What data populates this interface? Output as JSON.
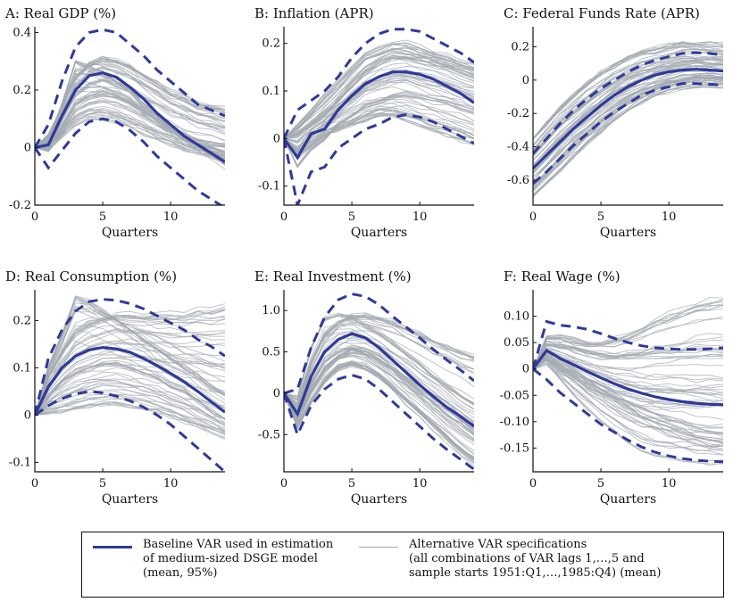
{
  "chart_data": [
    {
      "type": "line",
      "title": "A: Real GDP (%)",
      "xlabel": "Quarters",
      "xlim": [
        0,
        14
      ],
      "ylim": [
        -0.2,
        0.42
      ],
      "xticks": [
        0,
        5,
        10
      ],
      "yticks": [
        -0.2,
        0,
        0.2,
        0.4
      ],
      "yticklabels": [
        "-0.2",
        "0",
        "0.2",
        "0.4"
      ],
      "x": [
        0,
        1,
        2,
        3,
        4,
        5,
        6,
        7,
        8,
        9,
        10,
        11,
        12,
        13,
        14
      ],
      "series": [
        {
          "role": "mean",
          "values": [
            0,
            0.01,
            0.11,
            0.2,
            0.25,
            0.26,
            0.245,
            0.21,
            0.17,
            0.12,
            0.08,
            0.04,
            0.01,
            -0.02,
            -0.05
          ]
        },
        {
          "role": "upper",
          "values": [
            0,
            0.08,
            0.23,
            0.35,
            0.4,
            0.41,
            0.4,
            0.36,
            0.32,
            0.27,
            0.23,
            0.19,
            0.15,
            0.13,
            0.11
          ]
        },
        {
          "role": "lower",
          "values": [
            0,
            -0.07,
            -0.01,
            0.05,
            0.09,
            0.1,
            0.09,
            0.06,
            0.02,
            -0.03,
            -0.07,
            -0.11,
            -0.15,
            -0.18,
            -0.21
          ]
        },
        {
          "role": "alternative",
          "values": [
            0,
            0.02,
            0.15,
            0.3,
            0.28,
            0.26,
            0.23,
            0.2,
            0.15,
            0.11,
            0.07,
            0.03,
            0.0,
            -0.03,
            -0.06
          ]
        },
        {
          "role": "alternative",
          "values": [
            0,
            0.0,
            0.07,
            0.15,
            0.18,
            0.19,
            0.18,
            0.16,
            0.13,
            0.1,
            0.07,
            0.05,
            0.03,
            0.02,
            0.01
          ]
        },
        {
          "role": "alternative",
          "values": [
            0,
            0.04,
            0.14,
            0.24,
            0.29,
            0.31,
            0.3,
            0.28,
            0.25,
            0.22,
            0.19,
            0.17,
            0.15,
            0.14,
            0.13
          ]
        },
        {
          "role": "alternative",
          "values": [
            0,
            -0.01,
            0.04,
            0.08,
            0.1,
            0.1,
            0.09,
            0.07,
            0.05,
            0.03,
            0.01,
            -0.01,
            -0.02,
            -0.03,
            -0.04
          ]
        }
      ]
    },
    {
      "type": "line",
      "title": "B: Inflation (APR)",
      "xlabel": "Quarters",
      "xlim": [
        0,
        14
      ],
      "ylim": [
        -0.14,
        0.235
      ],
      "xticks": [
        0,
        5,
        10
      ],
      "yticks": [
        -0.1,
        0,
        0.1,
        0.2
      ],
      "yticklabels": [
        "-0.1",
        "0",
        "0.1",
        "0.2"
      ],
      "x": [
        0,
        1,
        2,
        3,
        4,
        5,
        6,
        7,
        8,
        9,
        10,
        11,
        12,
        13,
        14
      ],
      "series": [
        {
          "role": "mean",
          "values": [
            0,
            -0.04,
            0.01,
            0.02,
            0.06,
            0.09,
            0.115,
            0.13,
            0.14,
            0.14,
            0.135,
            0.125,
            0.11,
            0.095,
            0.075
          ]
        },
        {
          "role": "upper",
          "values": [
            0,
            0.06,
            0.08,
            0.1,
            0.13,
            0.17,
            0.2,
            0.22,
            0.23,
            0.23,
            0.225,
            0.21,
            0.195,
            0.18,
            0.16
          ]
        },
        {
          "role": "lower",
          "values": [
            0,
            -0.14,
            -0.07,
            -0.06,
            -0.02,
            0.0,
            0.02,
            0.03,
            0.045,
            0.05,
            0.045,
            0.035,
            0.02,
            0.005,
            -0.01
          ]
        },
        {
          "role": "alternative",
          "values": [
            0,
            0.01,
            0.03,
            0.05,
            0.08,
            0.11,
            0.14,
            0.16,
            0.17,
            0.17,
            0.165,
            0.16,
            0.15,
            0.14,
            0.13
          ]
        },
        {
          "role": "alternative",
          "values": [
            0,
            -0.06,
            -0.02,
            0.0,
            0.03,
            0.05,
            0.07,
            0.08,
            0.09,
            0.095,
            0.09,
            0.085,
            0.08,
            0.07,
            0.06
          ]
        },
        {
          "role": "alternative",
          "values": [
            0,
            0.03,
            0.06,
            0.09,
            0.12,
            0.15,
            0.18,
            0.19,
            0.2,
            0.2,
            0.19,
            0.18,
            0.17,
            0.16,
            0.15
          ]
        },
        {
          "role": "alternative",
          "values": [
            0,
            -0.03,
            -0.01,
            0.01,
            0.02,
            0.03,
            0.04,
            0.05,
            0.05,
            0.04,
            0.03,
            0.02,
            0.01,
            0.0,
            -0.01
          ]
        }
      ]
    },
    {
      "type": "line",
      "title": "C: Federal Funds Rate (APR)",
      "xlabel": "Quarters",
      "xlim": [
        0,
        14
      ],
      "ylim": [
        -0.75,
        0.32
      ],
      "xticks": [
        0,
        5,
        10
      ],
      "yticks": [
        -0.6,
        -0.4,
        -0.2,
        0,
        0.2
      ],
      "yticklabels": [
        "-0.6",
        "-0.4",
        "-0.2",
        "0",
        "0.2"
      ],
      "x": [
        0,
        1,
        2,
        3,
        4,
        5,
        6,
        7,
        8,
        9,
        10,
        11,
        12,
        13,
        14
      ],
      "series": [
        {
          "role": "mean",
          "values": [
            -0.53,
            -0.45,
            -0.37,
            -0.29,
            -0.22,
            -0.15,
            -0.09,
            -0.04,
            0.0,
            0.03,
            0.05,
            0.06,
            0.065,
            0.06,
            0.055
          ]
        },
        {
          "role": "upper",
          "values": [
            -0.44,
            -0.35,
            -0.26,
            -0.18,
            -0.11,
            -0.05,
            0.0,
            0.05,
            0.09,
            0.12,
            0.14,
            0.16,
            0.165,
            0.16,
            0.15
          ]
        },
        {
          "role": "lower",
          "values": [
            -0.62,
            -0.55,
            -0.47,
            -0.39,
            -0.32,
            -0.25,
            -0.19,
            -0.14,
            -0.09,
            -0.06,
            -0.04,
            -0.02,
            -0.02,
            -0.025,
            -0.03
          ]
        },
        {
          "role": "alternative",
          "values": [
            -0.35,
            -0.26,
            -0.17,
            -0.09,
            -0.02,
            0.04,
            0.09,
            0.13,
            0.16,
            0.18,
            0.2,
            0.21,
            0.21,
            0.205,
            0.2
          ]
        },
        {
          "role": "alternative",
          "values": [
            -0.7,
            -0.62,
            -0.54,
            -0.46,
            -0.38,
            -0.31,
            -0.24,
            -0.18,
            -0.13,
            -0.09,
            -0.06,
            -0.04,
            -0.03,
            -0.03,
            -0.03
          ]
        },
        {
          "role": "alternative",
          "values": [
            -0.45,
            -0.36,
            -0.27,
            -0.2,
            -0.13,
            -0.07,
            -0.02,
            0.02,
            0.05,
            0.08,
            0.1,
            0.11,
            0.12,
            0.12,
            0.11
          ]
        },
        {
          "role": "alternative",
          "values": [
            -0.6,
            -0.52,
            -0.43,
            -0.35,
            -0.28,
            -0.21,
            -0.15,
            -0.1,
            -0.06,
            -0.03,
            -0.01,
            0.01,
            0.02,
            0.02,
            0.02
          ]
        }
      ]
    },
    {
      "type": "line",
      "title": "D: Real Consumption (%)",
      "xlabel": "Quarters",
      "xlim": [
        0,
        14
      ],
      "ylim": [
        -0.12,
        0.265
      ],
      "xticks": [
        0,
        5,
        10
      ],
      "yticks": [
        -0.1,
        0,
        0.1,
        0.2
      ],
      "yticklabels": [
        "-0.1",
        "0",
        "0.1",
        "0.2"
      ],
      "x": [
        0,
        1,
        2,
        3,
        4,
        5,
        6,
        7,
        8,
        9,
        10,
        11,
        12,
        13,
        14
      ],
      "series": [
        {
          "role": "mean",
          "values": [
            0,
            0.06,
            0.1,
            0.125,
            0.138,
            0.143,
            0.14,
            0.133,
            0.12,
            0.105,
            0.088,
            0.07,
            0.05,
            0.028,
            0.006
          ]
        },
        {
          "role": "upper",
          "values": [
            0,
            0.12,
            0.18,
            0.22,
            0.24,
            0.245,
            0.243,
            0.236,
            0.225,
            0.21,
            0.195,
            0.18,
            0.16,
            0.145,
            0.125
          ]
        },
        {
          "role": "lower",
          "values": [
            0,
            0.02,
            0.035,
            0.045,
            0.05,
            0.047,
            0.04,
            0.03,
            0.017,
            0.0,
            -0.02,
            -0.045,
            -0.07,
            -0.095,
            -0.12
          ]
        },
        {
          "role": "alternative",
          "values": [
            0,
            0.1,
            0.17,
            0.25,
            0.24,
            0.22,
            0.2,
            0.18,
            0.16,
            0.14,
            0.12,
            0.1,
            0.08,
            0.06,
            0.04
          ]
        },
        {
          "role": "alternative",
          "values": [
            0,
            0.04,
            0.07,
            0.09,
            0.1,
            0.11,
            0.11,
            0.1,
            0.09,
            0.08,
            0.06,
            0.05,
            0.03,
            0.01,
            -0.01
          ]
        },
        {
          "role": "alternative",
          "values": [
            0,
            0.08,
            0.13,
            0.17,
            0.19,
            0.2,
            0.21,
            0.21,
            0.21,
            0.21,
            0.21,
            0.21,
            0.22,
            0.22,
            0.23
          ]
        },
        {
          "role": "alternative",
          "values": [
            0,
            0.005,
            0.01,
            0.015,
            0.02,
            0.025,
            0.025,
            0.02,
            0.015,
            0.01,
            0.0,
            -0.01,
            -0.02,
            -0.03,
            -0.04
          ]
        }
      ]
    },
    {
      "type": "line",
      "title": "E: Real Investment (%)",
      "xlabel": "Quarters",
      "xlim": [
        0,
        14
      ],
      "ylim": [
        -0.95,
        1.25
      ],
      "xticks": [
        0,
        5,
        10
      ],
      "yticks": [
        -0.5,
        0,
        0.5,
        1
      ],
      "yticklabels": [
        "-0.5",
        "0",
        "0.5",
        "1.0"
      ],
      "x": [
        0,
        1,
        2,
        3,
        4,
        5,
        6,
        7,
        8,
        9,
        10,
        11,
        12,
        13,
        14
      ],
      "series": [
        {
          "role": "mean",
          "values": [
            0,
            -0.25,
            0.2,
            0.5,
            0.65,
            0.72,
            0.67,
            0.55,
            0.4,
            0.25,
            0.1,
            -0.04,
            -0.17,
            -0.28,
            -0.4
          ]
        },
        {
          "role": "upper",
          "values": [
            0,
            0.05,
            0.55,
            0.92,
            1.13,
            1.2,
            1.17,
            1.07,
            0.93,
            0.8,
            0.67,
            0.53,
            0.4,
            0.28,
            0.15
          ]
        },
        {
          "role": "lower",
          "values": [
            0,
            -0.5,
            -0.15,
            0.05,
            0.17,
            0.22,
            0.17,
            0.05,
            -0.1,
            -0.25,
            -0.4,
            -0.55,
            -0.68,
            -0.8,
            -0.92
          ]
        },
        {
          "role": "alternative",
          "values": [
            0,
            -0.05,
            0.55,
            0.9,
            0.95,
            0.9,
            0.82,
            0.72,
            0.6,
            0.47,
            0.34,
            0.2,
            0.08,
            -0.04,
            -0.14
          ]
        },
        {
          "role": "alternative",
          "values": [
            0,
            -0.3,
            0.05,
            0.3,
            0.45,
            0.52,
            0.5,
            0.42,
            0.3,
            0.18,
            0.05,
            -0.08,
            -0.2,
            -0.32,
            -0.45
          ]
        },
        {
          "role": "alternative",
          "values": [
            0,
            -0.15,
            0.35,
            0.7,
            0.85,
            0.92,
            0.93,
            0.9,
            0.85,
            0.78,
            0.7,
            0.62,
            0.55,
            0.48,
            0.42
          ]
        },
        {
          "role": "alternative",
          "values": [
            0,
            -0.4,
            -0.1,
            0.15,
            0.3,
            0.35,
            0.3,
            0.2,
            0.05,
            -0.1,
            -0.25,
            -0.4,
            -0.55,
            -0.7,
            -0.82
          ]
        }
      ]
    },
    {
      "type": "line",
      "title": "F: Real Wage (%)",
      "xlabel": "Quarters",
      "xlim": [
        0,
        14
      ],
      "ylim": [
        -0.195,
        0.15
      ],
      "xticks": [
        0,
        5,
        10
      ],
      "yticks": [
        -0.15,
        -0.1,
        -0.05,
        0,
        0.05,
        0.1
      ],
      "yticklabels": [
        "-0.15",
        "-0.10",
        "-0.05",
        "0",
        "0.05",
        "0.10"
      ],
      "x": [
        0,
        1,
        2,
        3,
        4,
        5,
        6,
        7,
        8,
        9,
        10,
        11,
        12,
        13,
        14
      ],
      "series": [
        {
          "role": "mean",
          "values": [
            0,
            0.035,
            0.02,
            0.008,
            -0.005,
            -0.017,
            -0.028,
            -0.038,
            -0.046,
            -0.053,
            -0.058,
            -0.062,
            -0.065,
            -0.067,
            -0.068
          ]
        },
        {
          "role": "upper",
          "values": [
            0,
            0.09,
            0.083,
            0.08,
            0.075,
            0.067,
            0.058,
            0.05,
            0.044,
            0.04,
            0.038,
            0.037,
            0.037,
            0.038,
            0.04
          ]
        },
        {
          "role": "lower",
          "values": [
            0,
            -0.02,
            -0.045,
            -0.065,
            -0.085,
            -0.105,
            -0.12,
            -0.135,
            -0.148,
            -0.158,
            -0.165,
            -0.17,
            -0.173,
            -0.175,
            -0.176
          ]
        },
        {
          "role": "alternative",
          "values": [
            0,
            0.06,
            0.06,
            0.055,
            0.05,
            0.05,
            0.055,
            0.065,
            0.075,
            0.09,
            0.1,
            0.11,
            0.12,
            0.125,
            0.13
          ]
        },
        {
          "role": "alternative",
          "values": [
            0,
            0.02,
            0.0,
            -0.015,
            -0.03,
            -0.045,
            -0.06,
            -0.075,
            -0.09,
            -0.1,
            -0.11,
            -0.12,
            -0.13,
            -0.135,
            -0.14
          ]
        },
        {
          "role": "alternative",
          "values": [
            0,
            0.045,
            0.04,
            0.035,
            0.03,
            0.025,
            0.02,
            0.02,
            0.02,
            0.02,
            0.02,
            0.02,
            0.02,
            0.02,
            0.02
          ]
        },
        {
          "role": "alternative",
          "values": [
            0,
            0.01,
            -0.02,
            -0.05,
            -0.075,
            -0.1,
            -0.12,
            -0.14,
            -0.155,
            -0.165,
            -0.17,
            -0.175,
            -0.178,
            -0.18,
            -0.18
          ]
        }
      ]
    }
  ],
  "legend": {
    "mean_label": "Baseline VAR used in estimation\nof medium-sized DSGE model\n(mean, 95%)",
    "alt_label": "Alternative VAR specifications\n(all combinations of VAR lags 1,…,5 and\nsample starts 1951:Q1,…,1985:Q4) (mean)"
  },
  "colors": {
    "baseline": "#2e3a9a",
    "alternatives": "#a3a9b0"
  }
}
